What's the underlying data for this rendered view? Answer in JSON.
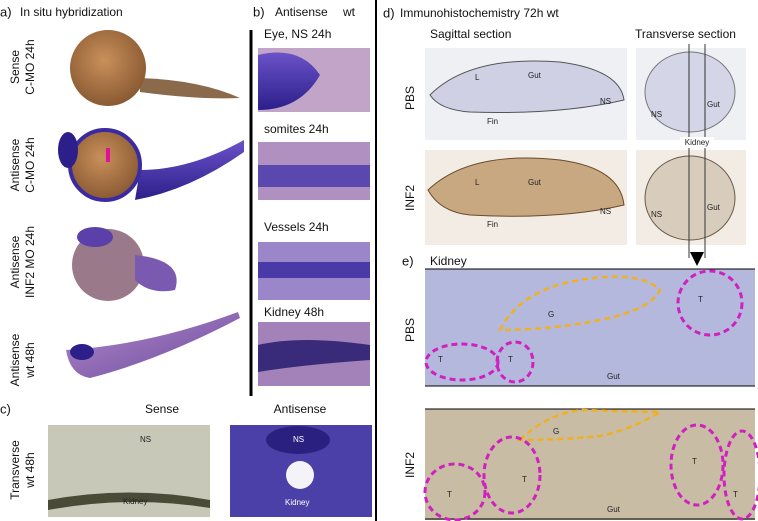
{
  "panel_a": {
    "letter": "a)",
    "title": "In situ hybridization",
    "rows": [
      {
        "line1": "Sense",
        "line2": "C-MO 24h"
      },
      {
        "line1": "Antisense",
        "line2": "C-MO 24h"
      },
      {
        "line1": "Antisense",
        "line2": "INF2 MO 24h"
      },
      {
        "line1": "Antisense",
        "line2": "wt  48h"
      }
    ]
  },
  "panel_b": {
    "letter": "b)",
    "title": "Antisense",
    "genotype": "wt",
    "images": [
      "Eye, NS  24h",
      "somites  24h",
      "Vessels  24h",
      "Kidney   48h"
    ]
  },
  "panel_c": {
    "letter": "c)",
    "columns": [
      "Sense",
      "Antisense"
    ],
    "row": {
      "line1": "Transverse",
      "line2": "wt  48h"
    },
    "labels": {
      "sense": [
        "NS",
        "Kidney"
      ],
      "antisense": [
        "NS",
        "Kidney"
      ]
    }
  },
  "panel_d": {
    "letter": "d)",
    "title": "Immunohistochemistry  72h   wt",
    "columns": [
      "Sagittal section",
      "Transverse section"
    ],
    "rows": [
      "PBS",
      "INF2"
    ],
    "kidney_label": "Kidney",
    "pbs_labels": {
      "sagittal": [
        "L",
        "Gut",
        "NS",
        "Fin"
      ],
      "transverse": [
        "NS",
        "Gut"
      ]
    },
    "inf2_labels": {
      "sagittal": [
        "L",
        "Gut",
        "NS",
        "Fin"
      ],
      "transverse": [
        "NS",
        "Gut"
      ]
    }
  },
  "panel_e": {
    "letter": "e)",
    "title": "Kidney",
    "rows": [
      "PBS",
      "INF2"
    ],
    "pbs_labels": [
      "G",
      "T",
      "T",
      "T",
      "Gut"
    ],
    "inf2_labels": [
      "G",
      "T",
      "T",
      "T",
      "T",
      "Gut"
    ]
  }
}
